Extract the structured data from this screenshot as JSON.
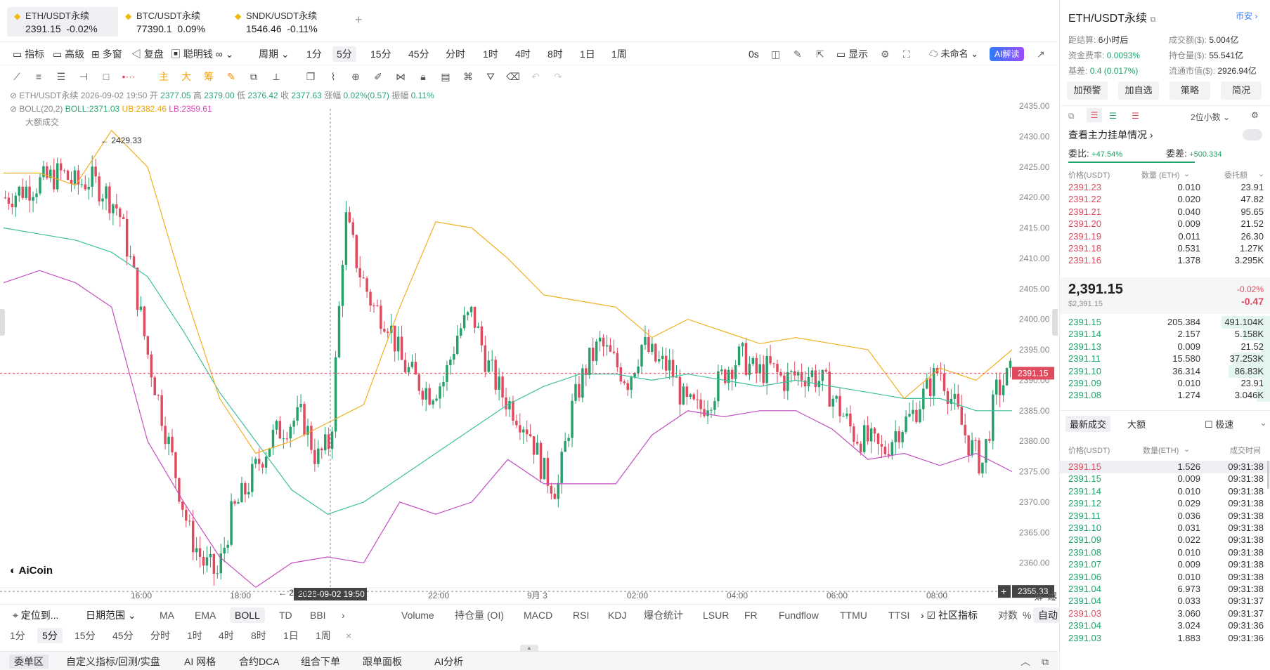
{
  "tabs": [
    {
      "name": "ETH/USDT永续",
      "price": "2391.15",
      "change": "-0.02%"
    },
    {
      "name": "BTC/USDT永续",
      "price": "77390.1",
      "change": "0.09%"
    },
    {
      "name": "SNDK/USDT永续",
      "price": "1546.46",
      "change": "-0.11%"
    }
  ],
  "toolbar": {
    "items": [
      "指标",
      "高级",
      "多窗",
      "复盘",
      "聪明钱",
      "周期",
      "1分",
      "5分",
      "15分",
      "45分",
      "分时",
      "1时",
      "4时",
      "8时",
      "1日",
      "1周"
    ],
    "countdown": "0s",
    "display": "显示",
    "unnamed": "未命名",
    "ai": "AI解读"
  },
  "drawbar": {
    "labels": [
      "主",
      "大",
      "筹"
    ]
  },
  "chart_info": {
    "line1_prefix": "ETH/USDT永续  2026-09-02 19:50  开",
    "open": "2377.05",
    "high_label": "高",
    "high": "2379.00",
    "low_label": "低",
    "low": "2376.42",
    "close_label": "收",
    "close": "2377.63",
    "chg_label": "涨幅",
    "chg": "0.02%(0.57)",
    "amp_label": "振幅",
    "amp": "0.11%",
    "boll": "BOLL(20,2)",
    "boll_mid": "BOLL:2371.03",
    "boll_ub": "UB:2382.46",
    "boll_lb": "LB:2359.61",
    "bigvol": "大额成交",
    "max_label": "← 2429.33",
    "min_label": "← 2355.12",
    "cur_price_label": "2391.15",
    "cross_price": "2355.33",
    "crosshair_time": "2026-09-02 19:50",
    "logo": "AiCoin"
  },
  "yaxis": [
    "2435.00",
    "2430.00",
    "2425.00",
    "2420.00",
    "2415.00",
    "2410.00",
    "2405.00",
    "2400.00",
    "2395.00",
    "2390.00",
    "2385.00",
    "2380.00",
    "2375.00",
    "2370.00",
    "2365.00",
    "2360.00"
  ],
  "xaxis": [
    "16:00",
    "18:00",
    "22:00",
    "9月 3",
    "02:00",
    "04:00",
    "06:00",
    "08:00"
  ],
  "chart_data": {
    "type": "candlestick",
    "ylim": [
      2355,
      2438
    ],
    "series": [
      {
        "name": "BOLL",
        "values": [
          2415,
          2414,
          2413,
          2411,
          2407,
          2398,
          2388,
          2380,
          2372,
          2368,
          2370,
          2374,
          2378,
          2382,
          2386,
          2389,
          2391,
          2391,
          2390,
          2391,
          2390,
          2389,
          2390,
          2389,
          2388,
          2387,
          2387,
          2385,
          2385
        ]
      },
      {
        "name": "UB",
        "values": [
          2424,
          2424,
          2422,
          2431,
          2425,
          2405,
          2387,
          2378,
          2380,
          2383,
          2386,
          2402,
          2416,
          2415,
          2410,
          2404,
          2403,
          2402,
          2397,
          2400,
          2398,
          2396,
          2397,
          2396,
          2395,
          2387,
          2392,
          2390,
          2395
        ]
      },
      {
        "name": "LB",
        "values": [
          2406,
          2408,
          2406,
          2402,
          2380,
          2370,
          2361,
          2356,
          2360,
          2361,
          2360,
          2370,
          2368,
          2370,
          2377,
          2373,
          2373,
          2373,
          2381,
          2385,
          2384,
          2385,
          2385,
          2382,
          2377,
          2378,
          2376,
          2378,
          2375
        ]
      }
    ],
    "candles": [
      2420,
      2421,
      2422,
      2423,
      2424,
      2422,
      2423,
      2421,
      2418,
      2408,
      2395,
      2385,
      2375,
      2365,
      2360,
      2358,
      2368,
      2372,
      2377,
      2381,
      2383,
      2384,
      2377,
      2380,
      2417,
      2408,
      2402,
      2400,
      2393,
      2390,
      2388,
      2390,
      2398,
      2401,
      2393,
      2388,
      2385,
      2382,
      2375,
      2372,
      2385,
      2392,
      2396,
      2393,
      2390,
      2396,
      2393,
      2392,
      2386,
      2385,
      2388,
      2392,
      2394,
      2391,
      2392,
      2390,
      2391,
      2391,
      2389,
      2385,
      2381,
      2380,
      2378,
      2382,
      2384,
      2388,
      2392,
      2386,
      2380,
      2376,
      2388,
      2391
    ]
  },
  "indicators": {
    "locate": "定位到...",
    "daterange": "日期范围",
    "main": [
      "MA",
      "EMA",
      "BOLL",
      "TD",
      "BBI"
    ],
    "sub": [
      "Volume",
      "持仓量 (OI)",
      "MACD",
      "RSI",
      "KDJ",
      "爆仓统计",
      "LSUR",
      "FR",
      "Fundflow",
      "TTMU",
      "TTSI"
    ],
    "community": "社区指标",
    "log": "对数",
    "pct": "%",
    "auto": "自动"
  },
  "timeframes": [
    "1分",
    "5分",
    "15分",
    "45分",
    "分时",
    "1时",
    "4时",
    "8时",
    "1日",
    "1周"
  ],
  "bottom": [
    "委单区",
    "自定义指标/回测/实盘",
    "AI 网格",
    "合约DCA",
    "组合下单",
    "跟单面板",
    "AI分析"
  ],
  "side": {
    "title": "ETH/USDT永续",
    "currency": "币安",
    "settle_label": "距结算:",
    "settle": "6小时后",
    "turnover_label": "成交额($):",
    "turnover": "5.004亿",
    "funding_label": "资金费率:",
    "funding": "0.0093%",
    "oi_label": "持仓量($):",
    "oi": "55.541亿",
    "basis_label": "基差:",
    "basis": "0.4 (0.017%)",
    "mcap_label": "流通市值($):",
    "mcap": "2926.94亿",
    "buttons": [
      "加预警",
      "加自选",
      "策略",
      "简况"
    ],
    "decimals": "2位小数",
    "main_order": "查看主力挂单情况",
    "ratio_label": "委比:",
    "ratio": "+47.54%",
    "diff_label": "委差:",
    "diff": "+500.334",
    "ob_headers": [
      "价格(USDT)",
      "数量 (ETH)",
      "委托额"
    ],
    "asks": [
      [
        "2391.23",
        "0.010",
        "23.91"
      ],
      [
        "2391.22",
        "0.020",
        "47.82"
      ],
      [
        "2391.21",
        "0.040",
        "95.65"
      ],
      [
        "2391.20",
        "0.009",
        "21.52"
      ],
      [
        "2391.19",
        "0.011",
        "26.30"
      ],
      [
        "2391.18",
        "0.531",
        "1.27K"
      ],
      [
        "2391.16",
        "1.378",
        "3.295K"
      ]
    ],
    "last_price": "2,391.15",
    "last_usd": "$2,391.15",
    "last_pct": "-0.02%",
    "last_chg": "-0.47",
    "bids": [
      [
        "2391.15",
        "205.384",
        "491.104K"
      ],
      [
        "2391.14",
        "2.157",
        "5.158K"
      ],
      [
        "2391.13",
        "0.009",
        "21.52"
      ],
      [
        "2391.11",
        "15.580",
        "37.253K"
      ],
      [
        "2391.10",
        "36.314",
        "86.83K"
      ],
      [
        "2391.09",
        "0.010",
        "23.91"
      ],
      [
        "2391.08",
        "1.274",
        "3.046K"
      ]
    ],
    "trade_tabs": [
      "最新成交",
      "大额"
    ],
    "fast": "极速",
    "tr_headers": [
      "价格(USDT)",
      "数量(ETH)",
      "成交时间"
    ],
    "trades": [
      [
        "2391.15",
        "1.526",
        "09:31:38",
        "r"
      ],
      [
        "2391.15",
        "0.009",
        "09:31:38",
        "g"
      ],
      [
        "2391.14",
        "0.010",
        "09:31:38",
        "g"
      ],
      [
        "2391.12",
        "0.029",
        "09:31:38",
        "g"
      ],
      [
        "2391.11",
        "0.036",
        "09:31:38",
        "g"
      ],
      [
        "2391.10",
        "0.031",
        "09:31:38",
        "g"
      ],
      [
        "2391.09",
        "0.022",
        "09:31:38",
        "g"
      ],
      [
        "2391.08",
        "0.010",
        "09:31:38",
        "g"
      ],
      [
        "2391.07",
        "0.009",
        "09:31:38",
        "g"
      ],
      [
        "2391.06",
        "0.010",
        "09:31:38",
        "g"
      ],
      [
        "2391.04",
        "6.973",
        "09:31:38",
        "g"
      ],
      [
        "2391.04",
        "0.033",
        "09:31:37",
        "g"
      ],
      [
        "2391.03",
        "3.060",
        "09:31:37",
        "r"
      ],
      [
        "2391.04",
        "3.024",
        "09:31:36",
        "g"
      ],
      [
        "2391.03",
        "1.883",
        "09:31:36",
        "g"
      ]
    ]
  }
}
